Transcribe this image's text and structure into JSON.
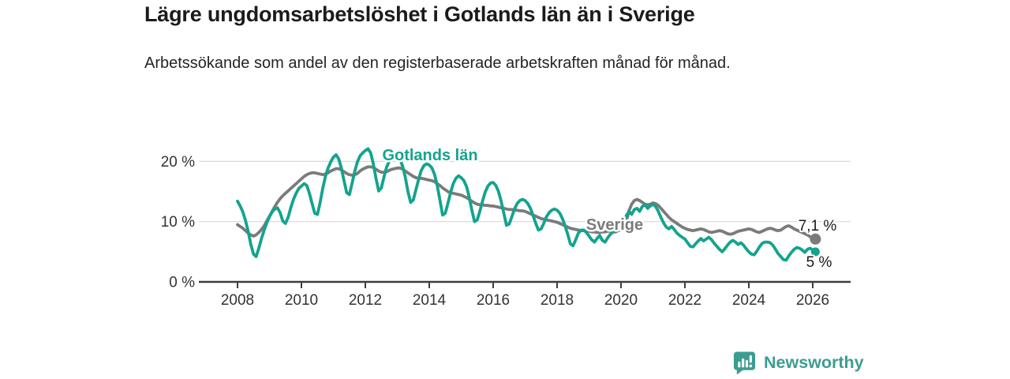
{
  "header": {
    "title": "Lägre ungdomsarbetslöshet i Gotlands län än i Sverige",
    "subtitle": "Arbetssökande som andel av den registerbaserade arbetskraften månad för månad."
  },
  "chart_data": {
    "type": "line",
    "title": "Lägre ungdomsarbetslöshet i Gotlands län än i Sverige",
    "frequency": "monthly",
    "x_start": "2008-01",
    "x_end": "2026-02",
    "grid": "horizontal",
    "legend_position": "inline-labels",
    "ylim": [
      0,
      23
    ],
    "x_ticks": [
      2008,
      2010,
      2012,
      2014,
      2016,
      2018,
      2020,
      2022,
      2024,
      2026
    ],
    "y_ticks": [
      {
        "label": "0 %",
        "value": 0
      },
      {
        "label": "10 %",
        "value": 10
      },
      {
        "label": "20 %",
        "value": 20
      }
    ],
    "series": [
      {
        "name": "Gotlands län",
        "color": "#14a38f",
        "end_label": "5 %",
        "end_value": 5.0,
        "values": [
          13.4,
          12.6,
          11.6,
          10.2,
          8.4,
          6.2,
          4.6,
          4.2,
          5.6,
          7.2,
          8.6,
          9.8,
          10.8,
          11.6,
          12.1,
          12.3,
          11.5,
          10.1,
          9.7,
          10.7,
          12.3,
          13.7,
          14.7,
          15.5,
          15.9,
          16.3,
          16.0,
          14.7,
          13.0,
          11.4,
          11.2,
          13.1,
          15.5,
          17.5,
          18.9,
          19.9,
          20.7,
          21.1,
          20.4,
          18.9,
          16.8,
          14.8,
          14.5,
          16.3,
          18.3,
          19.9,
          20.9,
          21.4,
          21.8,
          22.1,
          21.4,
          19.6,
          17.2,
          15.1,
          15.6,
          17.4,
          19.1,
          20.0,
          20.6,
          20.9,
          20.8,
          20.3,
          19.2,
          17.4,
          15.0,
          13.2,
          13.6,
          15.3,
          17.0,
          18.5,
          19.3,
          19.6,
          19.4,
          18.9,
          17.8,
          16.0,
          13.6,
          11.1,
          11.4,
          13.0,
          14.8,
          16.3,
          17.2,
          17.6,
          17.3,
          16.8,
          15.8,
          14.1,
          11.9,
          10.0,
          10.3,
          11.7,
          13.4,
          14.9,
          15.9,
          16.4,
          16.5,
          16.0,
          15.0,
          13.4,
          11.4,
          9.4,
          9.6,
          10.8,
          12.1,
          13.0,
          13.5,
          13.7,
          13.5,
          13.0,
          12.2,
          11.0,
          9.7,
          8.6,
          8.8,
          9.7,
          10.8,
          11.5,
          11.9,
          12.1,
          11.9,
          11.4,
          10.5,
          9.3,
          7.9,
          6.3,
          6.0,
          7.0,
          8.1,
          8.6,
          8.6,
          8.2,
          7.6,
          7.0,
          6.6,
          7.2,
          7.7,
          6.9,
          6.6,
          7.3,
          7.9,
          8.3,
          8.7,
          8.9,
          9.3,
          9.9,
          11.0,
          11.7,
          11.2,
          12.0,
          12.2,
          11.7,
          12.5,
          12.8,
          12.2,
          12.6,
          12.9,
          12.5,
          11.7,
          10.7,
          9.8,
          9.1,
          8.8,
          9.2,
          8.7,
          8.1,
          7.7,
          7.4,
          7.1,
          6.5,
          5.9,
          5.8,
          6.3,
          6.8,
          7.2,
          6.8,
          7.1,
          7.4,
          7.0,
          6.4,
          5.9,
          5.4,
          5.0,
          5.5,
          6.1,
          6.6,
          6.9,
          6.6,
          6.2,
          6.5,
          6.1,
          5.5,
          5.0,
          4.6,
          4.5,
          5.1,
          5.8,
          6.4,
          6.6,
          6.6,
          6.5,
          6.1,
          5.4,
          4.7,
          4.2,
          3.7,
          3.6,
          4.3,
          4.9,
          5.4,
          5.7,
          5.6,
          5.3,
          4.9,
          5.4,
          5.6,
          5.3,
          5.0
        ]
      },
      {
        "name": "Sverige",
        "color": "#7b7b7b",
        "end_label": "7,1 %",
        "end_value": 7.1,
        "values": [
          9.5,
          9.2,
          8.9,
          8.5,
          8.1,
          7.8,
          7.6,
          7.8,
          8.2,
          8.7,
          9.3,
          10.1,
          10.9,
          11.7,
          12.5,
          13.2,
          13.8,
          14.3,
          14.7,
          15.1,
          15.5,
          15.9,
          16.3,
          16.7,
          17.1,
          17.5,
          17.8,
          18.0,
          18.1,
          18.1,
          18.0,
          17.9,
          17.8,
          17.9,
          18.1,
          18.4,
          18.6,
          18.8,
          18.8,
          18.6,
          18.3,
          18.0,
          17.8,
          17.7,
          17.8,
          18.0,
          18.4,
          18.7,
          18.9,
          19.1,
          19.1,
          19.0,
          18.7,
          18.4,
          18.2,
          18.2,
          18.3,
          18.5,
          18.7,
          18.8,
          18.9,
          18.9,
          18.7,
          18.4,
          18.1,
          17.8,
          17.5,
          17.3,
          17.2,
          17.2,
          17.1,
          17.0,
          16.9,
          16.8,
          16.6,
          16.3,
          16.0,
          15.6,
          15.3,
          15.0,
          14.8,
          14.7,
          14.6,
          14.5,
          14.4,
          14.2,
          14.0,
          13.7,
          13.4,
          13.1,
          12.9,
          12.8,
          12.8,
          12.7,
          12.7,
          12.6,
          12.6,
          12.5,
          12.4,
          12.3,
          12.2,
          12.1,
          12.0,
          12.0,
          11.9,
          11.9,
          11.8,
          11.8,
          11.7,
          11.5,
          11.3,
          11.1,
          10.9,
          10.7,
          10.5,
          10.4,
          10.3,
          10.2,
          10.1,
          10.0,
          9.9,
          9.7,
          9.5,
          9.3,
          9.1,
          8.9,
          8.8,
          8.7,
          8.6,
          8.5,
          8.5,
          8.4,
          8.4,
          8.3,
          8.3,
          8.2,
          8.2,
          8.3,
          8.3,
          8.4,
          8.4,
          8.3,
          8.3,
          8.5,
          8.7,
          9.0,
          10.0,
          11.8,
          12.9,
          13.5,
          13.7,
          13.5,
          13.2,
          12.9,
          12.8,
          12.9,
          13.1,
          13.0,
          12.7,
          12.2,
          11.7,
          11.2,
          10.7,
          10.3,
          10.0,
          9.7,
          9.4,
          9.1,
          8.9,
          8.7,
          8.6,
          8.5,
          8.6,
          8.7,
          8.8,
          8.7,
          8.5,
          8.3,
          8.2,
          8.3,
          8.4,
          8.5,
          8.4,
          8.2,
          8.0,
          7.9,
          8.0,
          8.2,
          8.4,
          8.5,
          8.6,
          8.7,
          8.8,
          8.7,
          8.5,
          8.3,
          8.2,
          8.4,
          8.6,
          8.8,
          8.9,
          8.8,
          8.6,
          8.5,
          8.6,
          8.9,
          9.2,
          9.3,
          9.1,
          8.8,
          8.6,
          8.4,
          8.2,
          8.0,
          7.8,
          7.5,
          7.3,
          7.1
        ]
      }
    ]
  },
  "footer": {
    "brand": "Newsworthy",
    "brand_color": "#3d9c92"
  }
}
